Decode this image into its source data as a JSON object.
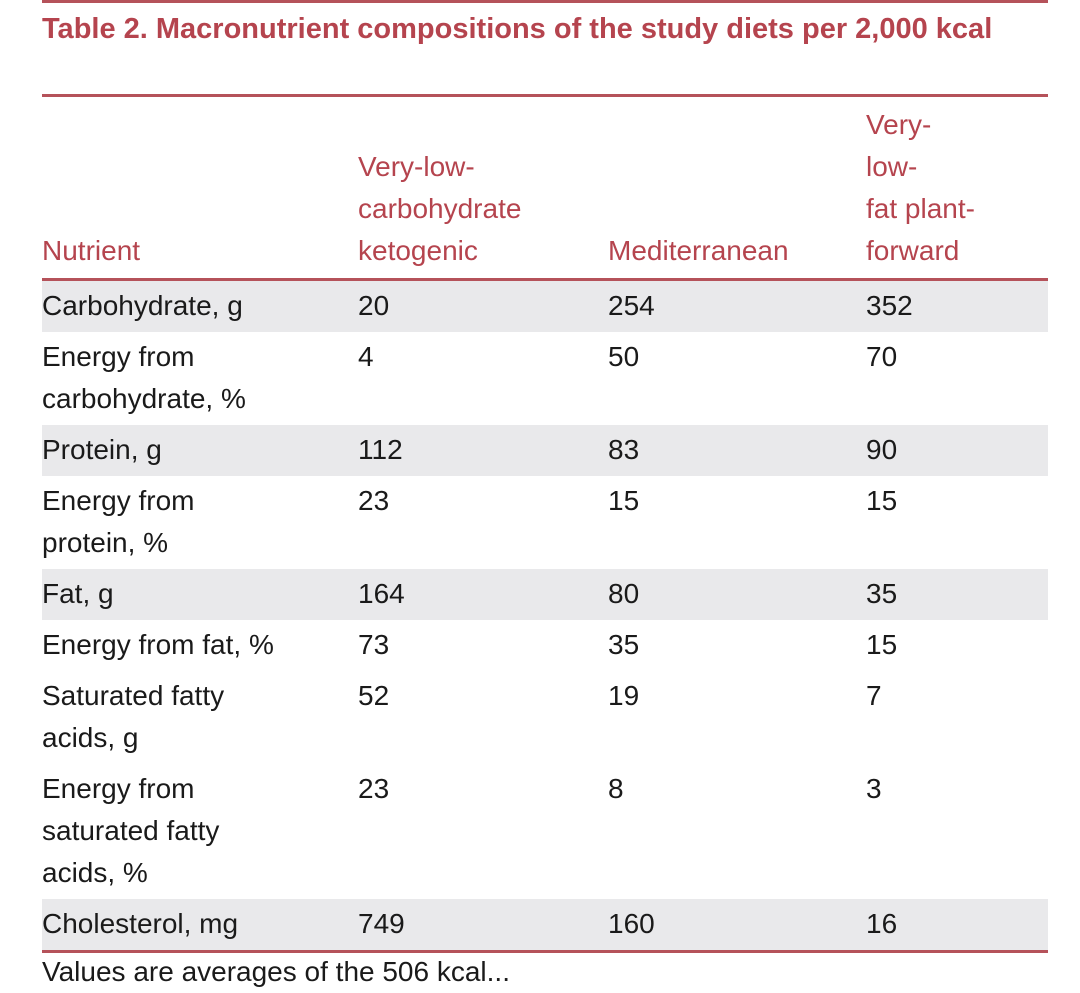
{
  "table": {
    "title": "Table 2.  Macronutrient compositions of the study diets per 2,000 kcal",
    "headers": [
      "Nutrient",
      "Very-low-\ncarbohydrate\nketogenic",
      "Mediterranean",
      "Very-\nlow-\nfat plant-\nforward"
    ],
    "rows": [
      [
        "Carbohydrate, g",
        "20",
        "254",
        "352"
      ],
      [
        "Energy from\ncarbohydrate, %",
        "4",
        "50",
        "70"
      ],
      [
        "Protein, g",
        "112",
        "83",
        "90"
      ],
      [
        "Energy from\nprotein, %",
        "23",
        "15",
        "15"
      ],
      [
        "Fat, g",
        "164",
        "80",
        "35"
      ],
      [
        "Energy from fat, %",
        "73",
        "35",
        "15"
      ],
      [
        "Saturated fatty\nacids, g",
        "52",
        "19",
        "7"
      ],
      [
        "Energy from\nsaturated fatty\nacids, %",
        "23",
        "8",
        "3"
      ],
      [
        "Cholesterol, mg",
        "749",
        "160",
        "16"
      ]
    ],
    "shaded_rows": [
      0,
      2,
      4,
      8
    ],
    "footnote_partial": "Values are averages of the 506 kcal..."
  },
  "colors": {
    "accent": "#b5444e",
    "rule": "#b5525a",
    "row_shade": "#e9e9eb",
    "text": "#1a1a1a"
  }
}
